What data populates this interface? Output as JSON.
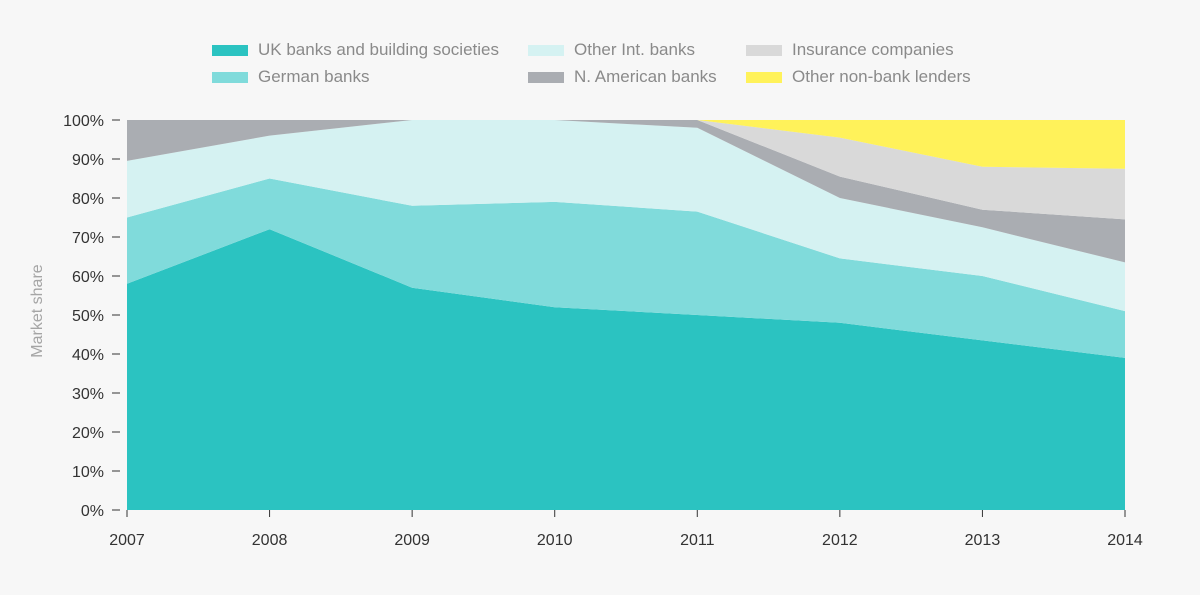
{
  "chart_data": {
    "type": "area",
    "stacked": true,
    "title": "",
    "xlabel": "",
    "ylabel": "Market share",
    "x": [
      "2007",
      "2008",
      "2009",
      "2010",
      "2011",
      "2012",
      "2013",
      "2014"
    ],
    "ylim": [
      0,
      100
    ],
    "yticks": [
      "0%",
      "10%",
      "20%",
      "30%",
      "40%",
      "50%",
      "60%",
      "70%",
      "80%",
      "90%",
      "100%"
    ],
    "legend_position": "top",
    "grid": false,
    "series": [
      {
        "name": "UK banks and building societies",
        "color": "#2bc3c1",
        "values": [
          58,
          72,
          57,
          52,
          50,
          48,
          43.5,
          39
        ]
      },
      {
        "name": "German banks",
        "color": "#80dbdb",
        "values": [
          17,
          13,
          21,
          27,
          26.5,
          16.5,
          16.5,
          12
        ]
      },
      {
        "name": "Other Int. banks",
        "color": "#d5f2f2",
        "values": [
          14.5,
          11,
          22,
          21,
          21.5,
          15.5,
          12.5,
          12.5
        ]
      },
      {
        "name": "N. American banks",
        "color": "#aaadb2",
        "values": [
          10.5,
          4,
          0,
          0,
          2,
          5.5,
          4.5,
          11
        ]
      },
      {
        "name": "Insurance companies",
        "color": "#d9d9d9",
        "values": [
          0,
          0,
          0,
          0,
          0,
          10,
          11,
          13
        ]
      },
      {
        "name": "Other non-bank lenders",
        "color": "#fff25a",
        "values": [
          0,
          0,
          0,
          0,
          0,
          4.5,
          12,
          12.5
        ]
      }
    ]
  }
}
